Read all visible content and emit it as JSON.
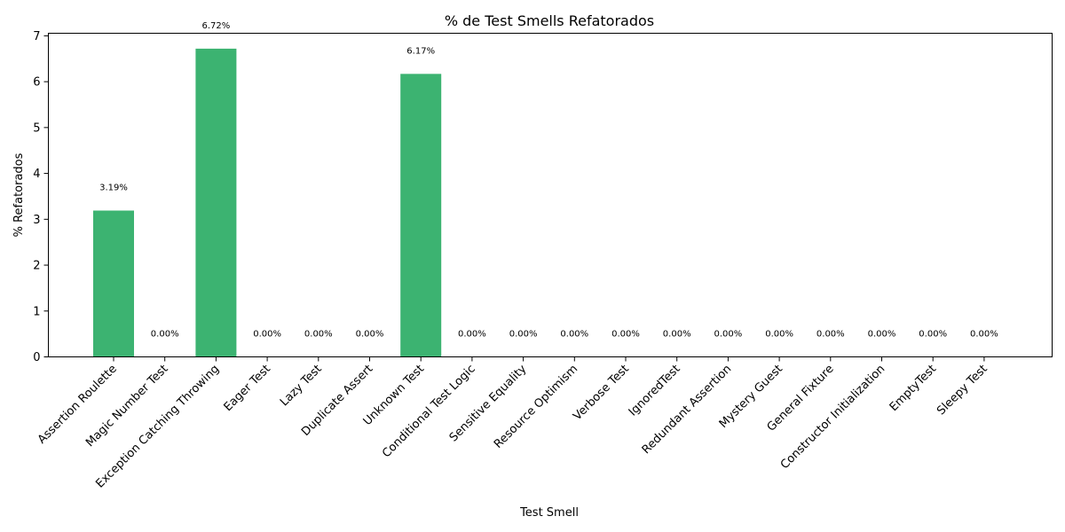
{
  "chart_data": {
    "type": "bar",
    "title": "% de Test Smells Refatorados",
    "xlabel": "Test Smell",
    "ylabel": "% Refatorados",
    "categories": [
      "Assertion Roulette",
      "Magic Number Test",
      "Exception Catching Throwing",
      "Eager Test",
      "Lazy Test",
      "Duplicate Assert",
      "Unknown Test",
      "Conditional Test Logic",
      "Sensitive Equality",
      "Resource Optimism",
      "Verbose Test",
      "IgnoredTest",
      "Redundant Assertion",
      "Mystery Guest",
      "General Fixture",
      "Constructor Initialization",
      "EmptyTest",
      "Sleepy Test"
    ],
    "values": [
      3.19,
      0,
      6.72,
      0,
      0,
      0,
      6.17,
      0,
      0,
      0,
      0,
      0,
      0,
      0,
      0,
      0,
      0,
      0
    ],
    "data_labels": [
      "3.19%",
      "0.00%",
      "6.72%",
      "0.00%",
      "0.00%",
      "0.00%",
      "6.17%",
      "0.00%",
      "0.00%",
      "0.00%",
      "0.00%",
      "0.00%",
      "0.00%",
      "0.00%",
      "0.00%",
      "0.00%",
      "0.00%",
      "0.00%"
    ],
    "yticks": [
      "0",
      "1",
      "2",
      "3",
      "4",
      "5",
      "6",
      "7"
    ],
    "ylim": [
      0,
      7.056
    ],
    "bar_color": "#3cb371",
    "grid": false,
    "legend": "none"
  }
}
